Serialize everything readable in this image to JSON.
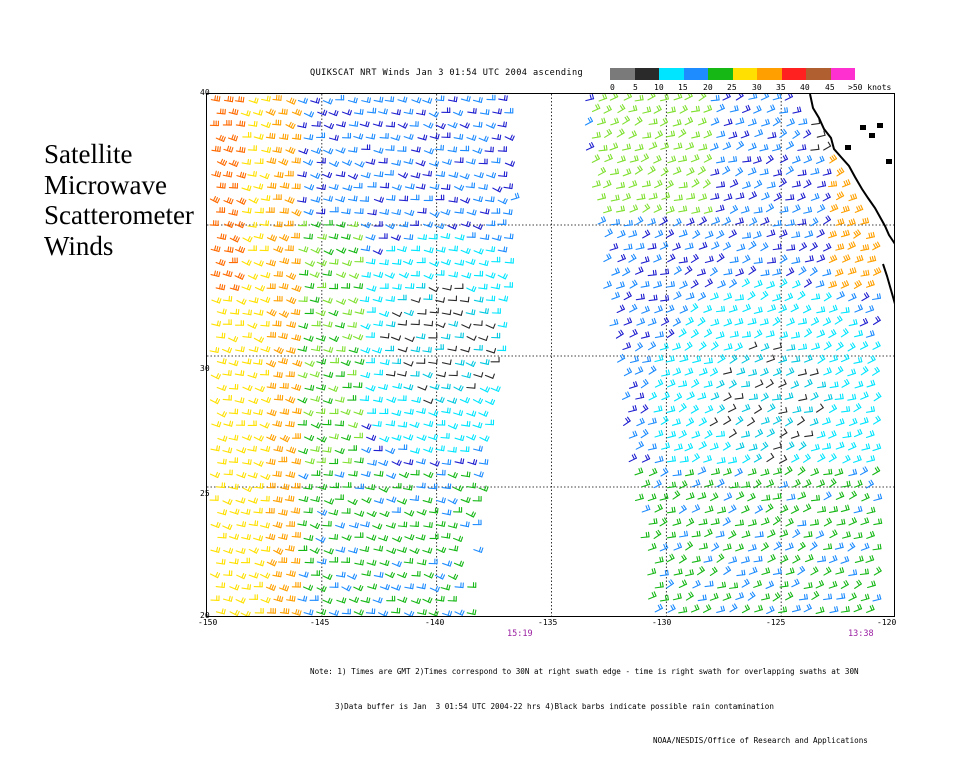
{
  "slide": {
    "title_lines": [
      "Satellite",
      "Microwave",
      "Scatterometer",
      "Winds"
    ]
  },
  "plot": {
    "header": "QUIKSCAT NRT Winds Jan  3 01:54 UTC 2004 ascending",
    "colorbar": {
      "colors": [
        "#7a7a7a",
        "#2a2a2a",
        "#00e5ff",
        "#1e8cff",
        "#2020d0",
        "#16b816",
        "#7fe030",
        "#ffe000",
        "#ffa000",
        "#ff6a00",
        "#ff2020",
        "#c01818",
        "#b06030",
        "#ff30d0",
        "#b000e0",
        "#600080"
      ],
      "tick_labels": [
        "0",
        "5",
        "10",
        "15",
        "20",
        "25",
        "30",
        "35",
        "40",
        "45",
        ">50 knots"
      ]
    },
    "lat_labels": [
      "40",
      "30",
      "25",
      "20"
    ],
    "lon_labels": [
      "-150",
      "-145",
      "-140",
      "-135",
      "-130",
      "-125",
      "-120"
    ],
    "swath_times": [
      "15:19",
      "13:38"
    ],
    "notes": [
      "Note: 1) Times are GMT 2)Times correspond to 30N at right swath edge - time is right swath for overlapping swaths at 30N",
      "3)Data buffer is Jan  3 01:54 UTC 2004-22 hrs 4)Black barbs indicate possible rain contamination",
      "NOAA/NESDIS/Office of Research and Applications"
    ],
    "map": {
      "lon_range": [
        -150,
        -120
      ],
      "lat_range": [
        20,
        40
      ],
      "gridlines": true,
      "coastline_color": "#000000"
    }
  }
}
